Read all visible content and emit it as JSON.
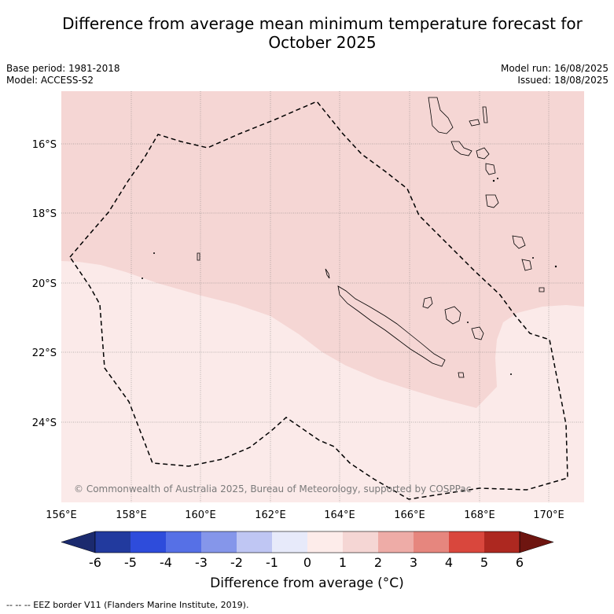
{
  "title_line1": "Difference from average mean minimum temperature forecast for",
  "title_line2": "October 2025",
  "meta": {
    "base_period": "Base period: 1981-2018",
    "model": "Model: ACCESS-S2",
    "model_run": "Model run: 16/08/2025",
    "issued": "Issued: 18/08/2025"
  },
  "map": {
    "lon_ticks": [
      "156°E",
      "158°E",
      "160°E",
      "162°E",
      "164°E",
      "166°E",
      "168°E",
      "170°E"
    ],
    "lat_ticks": [
      "16°S",
      "18°S",
      "20°S",
      "22°S",
      "24°S"
    ],
    "copyright": "© Commonwealth of Australia 2025, Bureau of Meteorology, supported by COSPPac",
    "extent": {
      "lon_min": 156,
      "lon_max": 171,
      "lat_max": -14.5,
      "lat_min": -26.3
    },
    "anomaly_zones": [
      {
        "range": "1 to 2 °C",
        "color": "#f5d6d4",
        "area": "north and central (incl. New Caledonia)"
      },
      {
        "range": "0 to 1 °C",
        "color": "#fbeae9",
        "area": "south-west and south-east"
      }
    ]
  },
  "colorbar": {
    "labels": [
      "-6",
      "-5",
      "-4",
      "-3",
      "-2",
      "-1",
      "0",
      "1",
      "2",
      "3",
      "4",
      "5",
      "6"
    ],
    "colors": [
      "#223a9e",
      "#2e4cdb",
      "#5670e6",
      "#8596ea",
      "#bfc6f3",
      "#e7eafa",
      "#fdecea",
      "#f5d6d4",
      "#eeaca7",
      "#e6867e",
      "#d9473d",
      "#ad2820"
    ],
    "under_color": "#1b2a6e",
    "over_color": "#6e1510",
    "title": "Difference from average (°C)"
  },
  "eez_note": "-- -- -- EEZ border V11 (Flanders Marine Institute, 2019)."
}
